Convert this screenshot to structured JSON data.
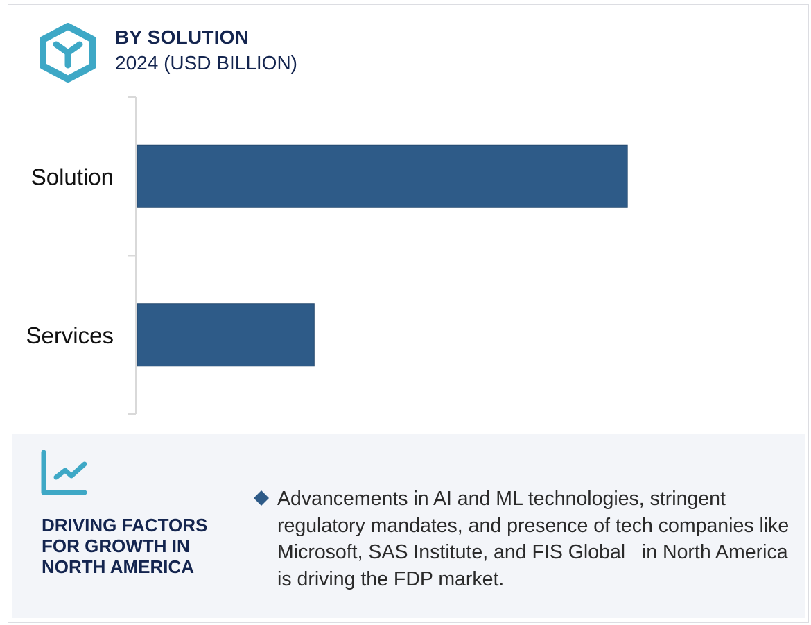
{
  "header": {
    "icon": "cube-icon",
    "title": "BY SOLUTION",
    "subtitle": "2024 (USD BILLION)"
  },
  "colors": {
    "bar": "#2e5b88",
    "accent_icon": "#3ea8c6",
    "title_text": "#14254f",
    "panel_bg": "#f3f5f9",
    "axis": "#d9d9d9"
  },
  "chart_data": {
    "type": "bar",
    "orientation": "horizontal",
    "title": "BY SOLUTION",
    "subtitle": "2024 (USD BILLION)",
    "categories": [
      "Solution",
      "Services"
    ],
    "values": [
      2.77,
      1.0
    ],
    "value_note": "No value axis shown; values are relative estimates (Services = 1.0)",
    "xlabel": "",
    "ylabel": "",
    "xlim": [
      0,
      3.4
    ],
    "grid": false,
    "legend": "none"
  },
  "panel": {
    "icon": "trend-chart-icon",
    "title": "DRIVING FACTORS FOR GROWTH IN NORTH AMERICA",
    "bullet_icon": "diamond-bullet-icon",
    "text": "Advancements in AI and ML technologies, stringent regulatory mandates, and presence of tech companies like Microsoft, SAS Institute, and FIS Global   in North America is driving the FDP market."
  }
}
